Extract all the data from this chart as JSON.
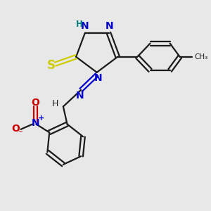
{
  "bg_color": "#e8e8e8",
  "bond_color": "#1a1a1a",
  "N_color": "#0000cc",
  "S_color": "#cccc00",
  "O_color": "#cc0000",
  "H_color": "#008080",
  "fig_size": [
    3.0,
    3.0
  ],
  "dpi": 100,
  "xlim": [
    0,
    10
  ],
  "ylim": [
    0,
    10
  ]
}
